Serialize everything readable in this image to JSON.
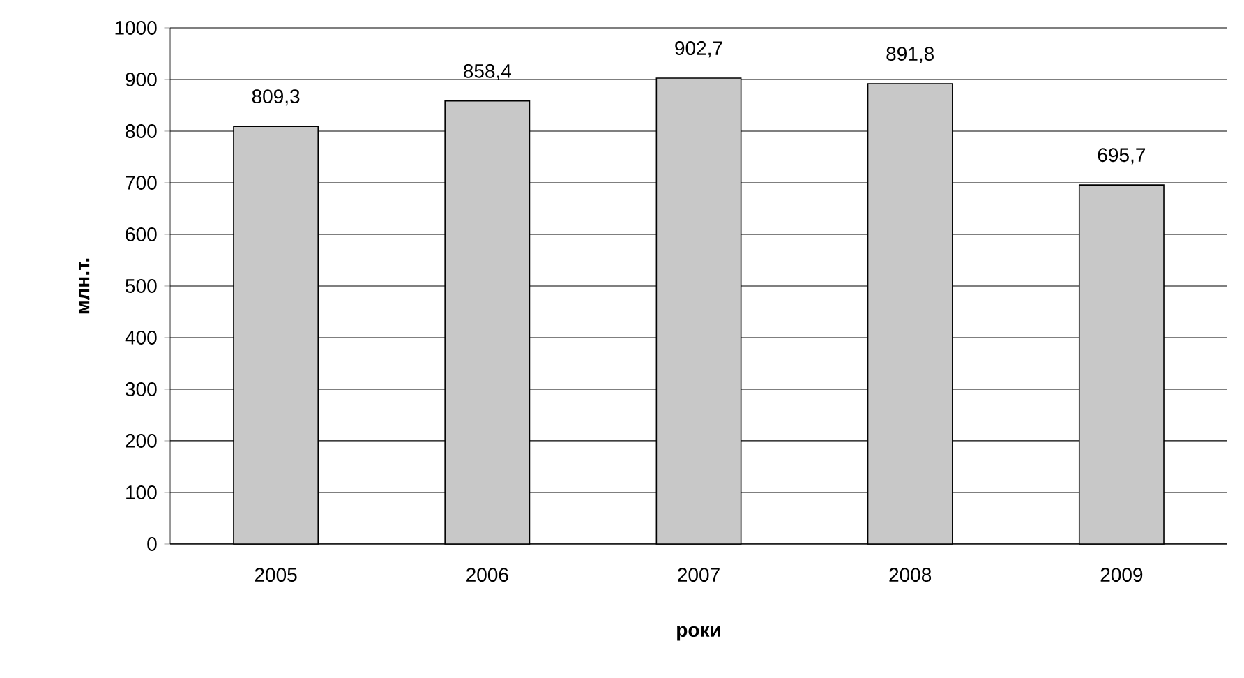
{
  "chart_data": {
    "type": "bar",
    "xlabel": "роки",
    "ylabel": "млн.т.",
    "categories": [
      "2005",
      "2006",
      "2007",
      "2008",
      "2009"
    ],
    "values": [
      809.3,
      858.4,
      902.7,
      891.8,
      695.7
    ],
    "value_labels": [
      "809,3",
      "858,4",
      "902,7",
      "891,8",
      "695,7"
    ],
    "color": "#c8c8c8",
    "ylim": [
      0,
      1000
    ],
    "yticks": [
      0,
      100,
      200,
      300,
      400,
      500,
      600,
      700,
      800,
      900,
      1000
    ],
    "grid": "y"
  }
}
